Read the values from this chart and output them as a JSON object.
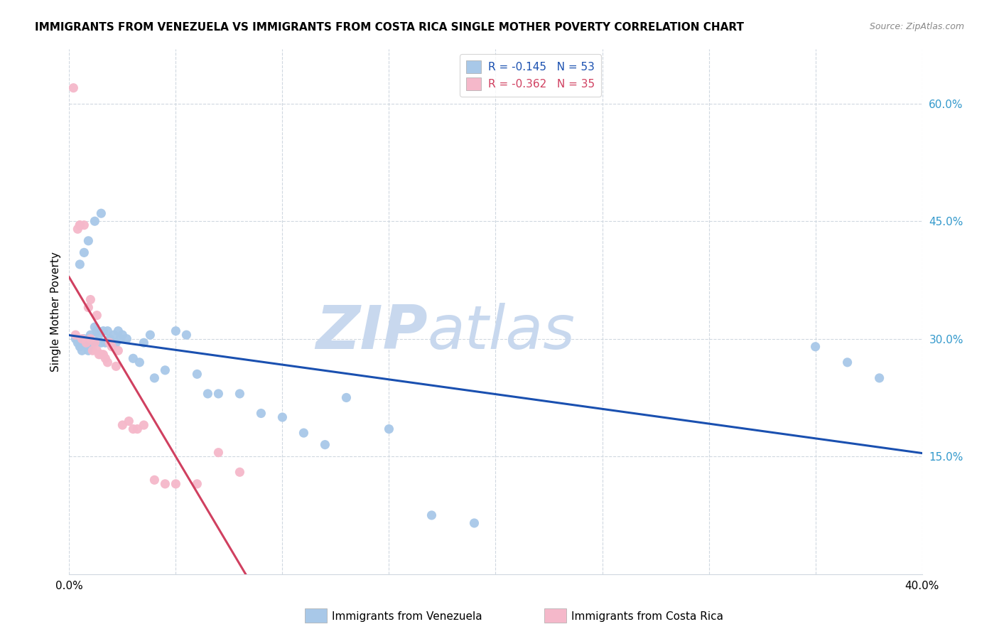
{
  "title": "IMMIGRANTS FROM VENEZUELA VS IMMIGRANTS FROM COSTA RICA SINGLE MOTHER POVERTY CORRELATION CHART",
  "source": "Source: ZipAtlas.com",
  "ylabel": "Single Mother Poverty",
  "ytick_vals": [
    0.15,
    0.3,
    0.45,
    0.6
  ],
  "ytick_labels": [
    "15.0%",
    "30.0%",
    "45.0%",
    "60.0%"
  ],
  "xtick_vals": [
    0.0,
    0.05,
    0.1,
    0.15,
    0.2,
    0.25,
    0.3,
    0.35,
    0.4
  ],
  "xlim": [
    0.0,
    0.4
  ],
  "ylim": [
    0.0,
    0.67
  ],
  "legend_blue_R": "R = -0.145",
  "legend_blue_N": "N = 53",
  "legend_pink_R": "R = -0.362",
  "legend_pink_N": "N = 35",
  "legend_blue_label": "Immigrants from Venezuela",
  "legend_pink_label": "Immigrants from Costa Rica",
  "blue_color": "#a8c8e8",
  "pink_color": "#f5b8ca",
  "trendline_blue_color": "#1a50b0",
  "trendline_pink_solid_color": "#d04060",
  "trendline_pink_dash_color": "#c0c8d8",
  "watermark_zip": "ZIP",
  "watermark_atlas": "atlas",
  "watermark_color": "#c8d8ee",
  "blue_x": [
    0.003,
    0.004,
    0.005,
    0.006,
    0.007,
    0.008,
    0.009,
    0.01,
    0.01,
    0.011,
    0.012,
    0.013,
    0.014,
    0.015,
    0.016,
    0.017,
    0.018,
    0.019,
    0.02,
    0.021,
    0.022,
    0.023,
    0.024,
    0.025,
    0.027,
    0.03,
    0.033,
    0.035,
    0.038,
    0.04,
    0.045,
    0.05,
    0.055,
    0.06,
    0.065,
    0.07,
    0.08,
    0.09,
    0.1,
    0.11,
    0.12,
    0.13,
    0.15,
    0.17,
    0.19,
    0.005,
    0.007,
    0.009,
    0.012,
    0.015,
    0.35,
    0.365,
    0.38
  ],
  "blue_y": [
    0.3,
    0.295,
    0.29,
    0.285,
    0.3,
    0.295,
    0.285,
    0.29,
    0.305,
    0.295,
    0.315,
    0.31,
    0.305,
    0.295,
    0.31,
    0.295,
    0.31,
    0.3,
    0.295,
    0.305,
    0.295,
    0.31,
    0.3,
    0.305,
    0.3,
    0.275,
    0.27,
    0.295,
    0.305,
    0.25,
    0.26,
    0.31,
    0.305,
    0.255,
    0.23,
    0.23,
    0.23,
    0.205,
    0.2,
    0.18,
    0.165,
    0.225,
    0.185,
    0.075,
    0.065,
    0.395,
    0.41,
    0.425,
    0.45,
    0.46,
    0.29,
    0.27,
    0.25
  ],
  "pink_x": [
    0.002,
    0.003,
    0.004,
    0.005,
    0.005,
    0.006,
    0.007,
    0.008,
    0.009,
    0.01,
    0.01,
    0.011,
    0.012,
    0.013,
    0.013,
    0.014,
    0.015,
    0.016,
    0.017,
    0.018,
    0.019,
    0.02,
    0.022,
    0.023,
    0.025,
    0.028,
    0.03,
    0.032,
    0.035,
    0.04,
    0.045,
    0.05,
    0.06,
    0.07,
    0.08
  ],
  "pink_y": [
    0.62,
    0.305,
    0.44,
    0.445,
    0.445,
    0.3,
    0.445,
    0.295,
    0.34,
    0.3,
    0.35,
    0.285,
    0.295,
    0.285,
    0.33,
    0.28,
    0.28,
    0.28,
    0.275,
    0.27,
    0.295,
    0.29,
    0.265,
    0.285,
    0.19,
    0.195,
    0.185,
    0.185,
    0.19,
    0.12,
    0.115,
    0.115,
    0.115,
    0.155,
    0.13
  ],
  "pink_trendline_x_solid_end": 0.175,
  "pink_trendline_x_dash_end": 0.3
}
